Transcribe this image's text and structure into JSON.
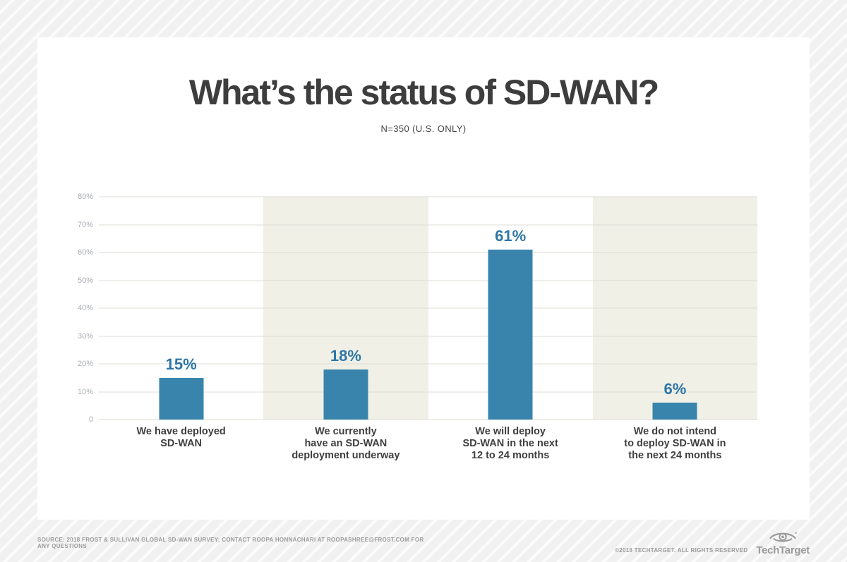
{
  "chart_data": {
    "type": "bar",
    "title": "What’s the status of SD-WAN?",
    "subtitle": "N=350 (U.S. ONLY)",
    "categories": [
      "We have deployed SD-WAN",
      "We currently have an SD-WAN deployment underway",
      "We will deploy SD-WAN in the next 12 to 24 months",
      "We do not intend to deploy SD-WAN in the next 24 months"
    ],
    "category_lines": [
      [
        "We have deployed",
        "SD-WAN"
      ],
      [
        "We currently",
        "have an SD-WAN",
        "deployment underway"
      ],
      [
        "We will deploy",
        "SD-WAN in the next",
        "12 to 24 months"
      ],
      [
        "We do not intend",
        "to deploy SD-WAN in",
        "the next 24 months"
      ]
    ],
    "values": [
      15,
      18,
      61,
      6
    ],
    "value_labels": [
      "15%",
      "18%",
      "61%",
      "6%"
    ],
    "xlabel": "",
    "ylabel": "",
    "ylim": [
      0,
      80
    ],
    "y_ticks": [
      {
        "label": "80%",
        "value": 80
      },
      {
        "label": "70%",
        "value": 70
      },
      {
        "label": "60%",
        "value": 60
      },
      {
        "label": "50%",
        "value": 50
      },
      {
        "label": "40%",
        "value": 40
      },
      {
        "label": "30%",
        "value": 30
      },
      {
        "label": "20%",
        "value": 20
      },
      {
        "label": "10%",
        "value": 10
      },
      {
        "label": "0",
        "value": 0
      }
    ],
    "grid": true,
    "legend_position": "none",
    "colors": {
      "bar": "#3884ac",
      "value_label": "#2d76a7",
      "band": "#f1f0e6",
      "gridline": "#dddcd6",
      "tick_label": "#a9aeb4"
    },
    "band_columns": [
      1,
      3
    ]
  },
  "footer": {
    "source": "SOURCE: 2018 FROST & SULLIVAN GLOBAL SD-WAN SURVEY; CONTACT ROOPA HONNACHARI AT ROOPASHREE@FROST.COM FOR ANY QUESTIONS",
    "copyright": "©2018 TECHTARGET. ALL RIGHTS RESERVED",
    "brand": "TechTarget"
  }
}
